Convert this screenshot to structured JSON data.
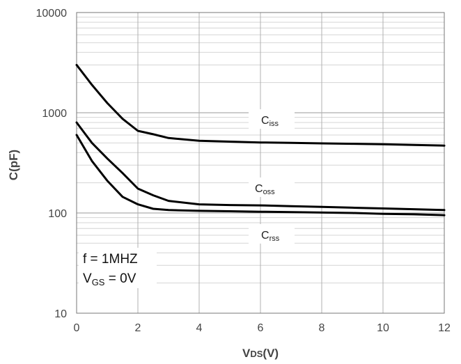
{
  "chart_data": {
    "type": "line",
    "title": "",
    "xlabel": "VDS(V)",
    "ylabel": "C(pF)",
    "x_ticks": [
      0,
      2,
      4,
      6,
      8,
      10,
      12
    ],
    "y_ticks": [
      10,
      100,
      1000,
      10000
    ],
    "xlim": [
      0,
      12
    ],
    "ylim": [
      10,
      10000
    ],
    "y_scale": "log",
    "grid": true,
    "x": [
      0,
      0.5,
      1,
      1.5,
      2,
      2.5,
      3,
      4,
      5,
      6,
      7,
      8,
      9,
      10,
      11,
      12
    ],
    "series": [
      {
        "name": "Ciss",
        "label_main": "C",
        "label_sub": "iss",
        "values": [
          3000,
          1900,
          1250,
          870,
          660,
          610,
          560,
          525,
          515,
          505,
          500,
          495,
          490,
          485,
          478,
          470
        ]
      },
      {
        "name": "Coss",
        "label_main": "C",
        "label_sub": "oss",
        "values": [
          800,
          500,
          350,
          250,
          175,
          150,
          132,
          122,
          120,
          119,
          117,
          115,
          113,
          111,
          109,
          107
        ]
      },
      {
        "name": "Crss",
        "label_main": "C",
        "label_sub": "rss",
        "values": [
          600,
          330,
          210,
          145,
          122,
          110,
          107,
          105,
          104,
          103,
          102,
          101,
          100,
          98,
          97,
          95
        ]
      }
    ],
    "annotation": {
      "line1": "f = 1MHZ",
      "line2_main": "V",
      "line2_sub": "GS",
      "line2_rest": " = 0V"
    },
    "xlabel_main": "V",
    "xlabel_sub": "DS",
    "xlabel_rest": "(V)"
  }
}
